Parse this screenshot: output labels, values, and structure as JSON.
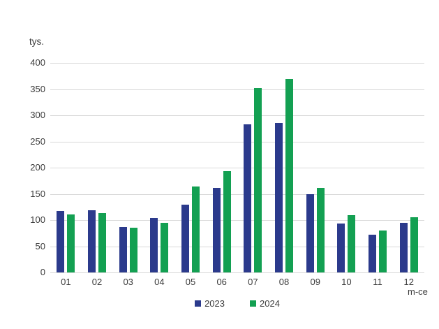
{
  "chart_data": {
    "type": "bar",
    "title": "",
    "ylabel": "tys.",
    "xlabel": "m-ce",
    "ylim": [
      0,
      400
    ],
    "ytick_interval": 50,
    "yticks": [
      400,
      350,
      300,
      250,
      200,
      150,
      100,
      50,
      0
    ],
    "categories": [
      "01",
      "02",
      "03",
      "04",
      "05",
      "06",
      "07",
      "08",
      "09",
      "10",
      "11",
      "12"
    ],
    "series": [
      {
        "name": "2023",
        "color": "#2b3a8c",
        "values": [
          118,
          119,
          87,
          104,
          129,
          162,
          283,
          286,
          150,
          93,
          72,
          95
        ]
      },
      {
        "name": "2024",
        "color": "#13a052",
        "values": [
          111,
          113,
          85,
          95,
          164,
          194,
          352,
          369,
          161,
          109,
          80,
          105
        ]
      }
    ],
    "grid": "horizontal",
    "gridline_color": "#d9d9d9",
    "legend_position": "bottom-center",
    "text_color": "#3b3b3b",
    "background_color": "#ffffff"
  }
}
